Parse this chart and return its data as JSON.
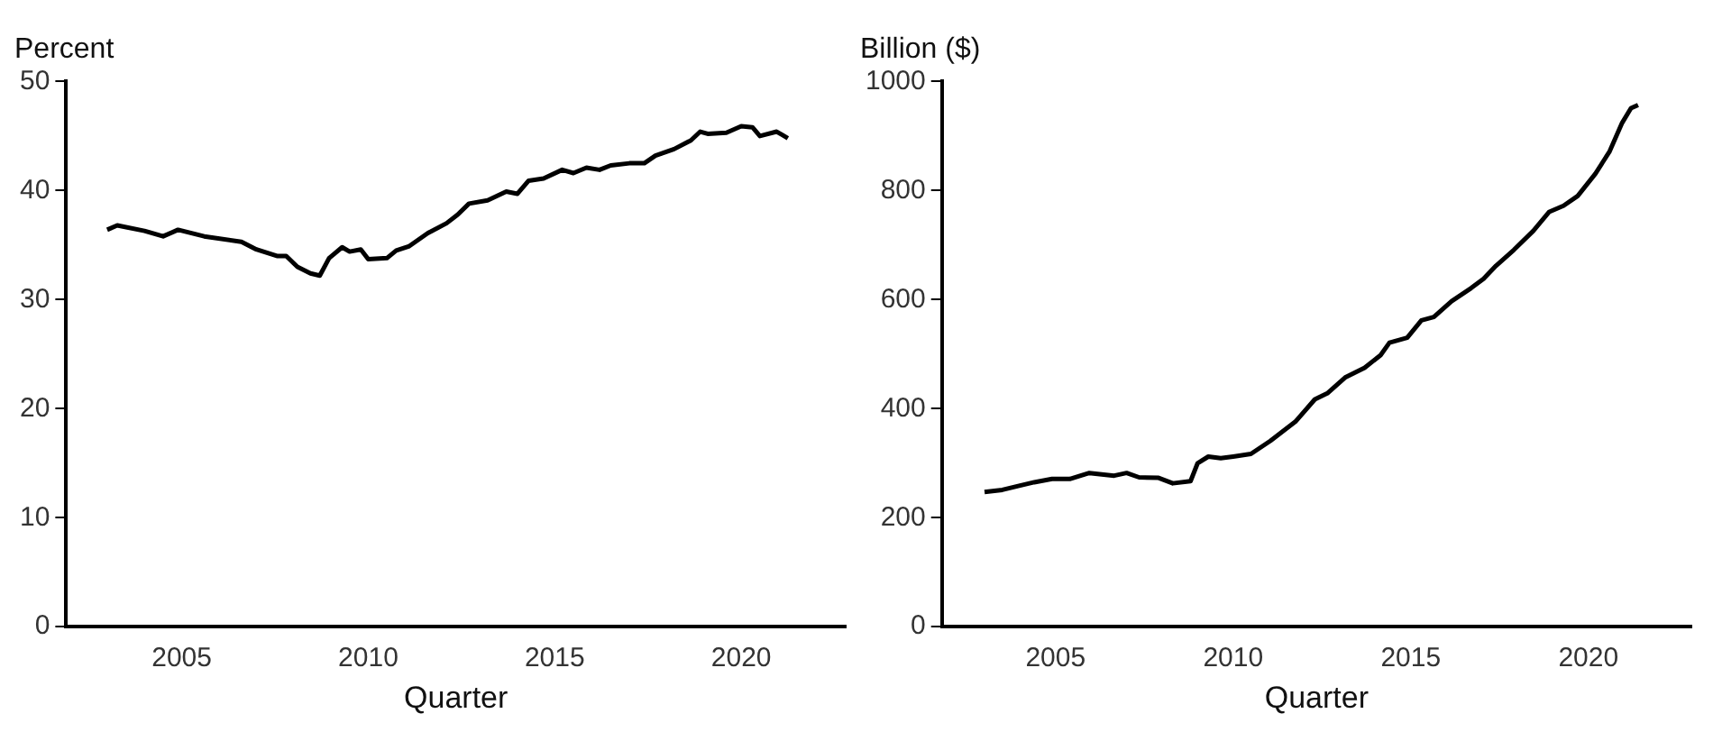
{
  "chart_data": [
    {
      "type": "line",
      "ylabel": "Percent",
      "xlabel": "Quarter",
      "color": "#000000",
      "x": [
        2003.0,
        2003.27,
        2004.0,
        2004.5,
        2004.9,
        2005.6,
        2006.6,
        2007.0,
        2007.55,
        2007.8,
        2008.1,
        2008.45,
        2008.7,
        2008.95,
        2009.3,
        2009.5,
        2009.8,
        2010.0,
        2010.5,
        2010.75,
        2011.1,
        2011.6,
        2012.1,
        2012.4,
        2012.7,
        2013.2,
        2013.7,
        2014.0,
        2014.3,
        2014.7,
        2015.2,
        2015.5,
        2015.85,
        2016.2,
        2016.5,
        2017.0,
        2017.4,
        2017.7,
        2018.2,
        2018.65,
        2018.9,
        2019.1,
        2019.6,
        2020.0,
        2020.3,
        2020.5,
        2020.95,
        2021.1,
        2021.25
      ],
      "values": [
        36.4,
        36.8,
        36.3,
        35.8,
        36.4,
        35.8,
        35.3,
        34.6,
        34.0,
        34.0,
        33.0,
        32.4,
        32.2,
        33.8,
        34.8,
        34.4,
        34.6,
        33.7,
        33.8,
        34.5,
        34.9,
        36.1,
        37.0,
        37.8,
        38.8,
        39.1,
        39.9,
        39.7,
        40.9,
        41.1,
        41.9,
        41.6,
        42.1,
        41.9,
        42.3,
        42.5,
        42.5,
        43.2,
        43.8,
        44.6,
        45.4,
        45.2,
        45.3,
        45.9,
        45.8,
        45.0,
        45.4,
        45.1,
        44.8
      ],
      "xlim": [
        2001.9,
        2022.8
      ],
      "xticks": [
        2005,
        2010,
        2015,
        2020
      ],
      "ylim": [
        0,
        50
      ],
      "yticks": [
        0,
        10,
        20,
        30,
        40,
        50
      ],
      "grid": false,
      "legend": false
    },
    {
      "type": "line",
      "ylabel": "Billion ($)",
      "xlabel": "Quarter",
      "color": "#000000",
      "x": [
        2003.0,
        2003.5,
        2004.0,
        2004.4,
        2004.9,
        2005.4,
        2005.95,
        2006.65,
        2007.0,
        2007.35,
        2007.9,
        2008.3,
        2008.8,
        2009.0,
        2009.3,
        2009.65,
        2010.0,
        2010.5,
        2011.05,
        2011.75,
        2012.3,
        2012.65,
        2013.15,
        2013.7,
        2014.15,
        2014.4,
        2014.9,
        2015.3,
        2015.65,
        2016.15,
        2016.7,
        2017.05,
        2017.4,
        2017.9,
        2018.45,
        2018.9,
        2019.3,
        2019.7,
        2020.2,
        2020.6,
        2020.95,
        2021.2,
        2021.4
      ],
      "values": [
        247,
        251,
        259,
        265,
        271,
        271,
        282,
        277,
        282,
        274,
        273,
        263,
        267,
        300,
        312,
        309,
        312,
        317,
        341,
        376,
        417,
        428,
        457,
        475,
        498,
        521,
        530,
        562,
        568,
        597,
        621,
        638,
        662,
        691,
        726,
        761,
        772,
        790,
        831,
        872,
        924,
        951,
        957
      ],
      "xlim": [
        2001.8,
        2022.9
      ],
      "xticks": [
        2005,
        2010,
        2015,
        2020
      ],
      "ylim": [
        0,
        1000
      ],
      "yticks": [
        0,
        200,
        400,
        600,
        800,
        1000
      ],
      "grid": false,
      "legend": false
    }
  ]
}
